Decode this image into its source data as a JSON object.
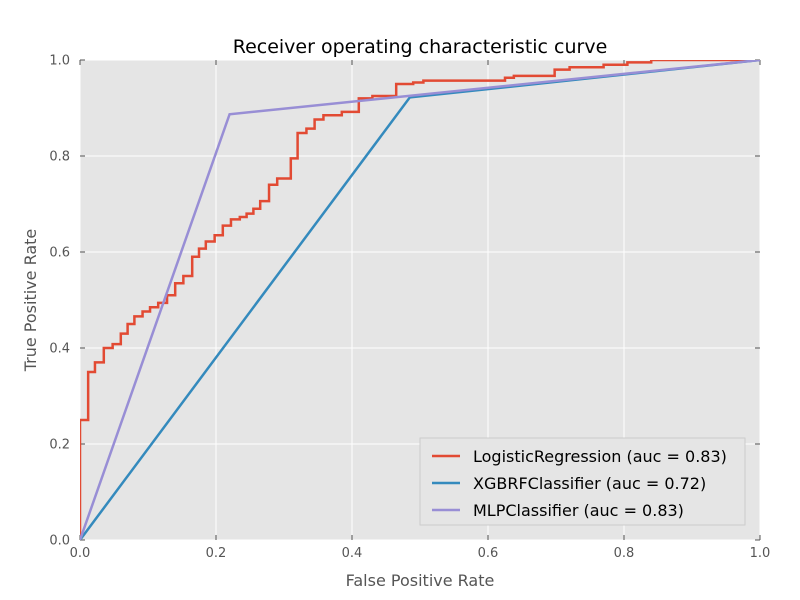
{
  "chart_data": {
    "type": "line",
    "title": "Receiver operating characteristic curve",
    "xlabel": "False Positive Rate",
    "ylabel": "True Positive Rate",
    "xlim": [
      0.0,
      1.0
    ],
    "ylim": [
      0.0,
      1.0
    ],
    "xticks": [
      "0.0",
      "0.2",
      "0.4",
      "0.6",
      "0.8",
      "1.0"
    ],
    "yticks": [
      "0.0",
      "0.2",
      "0.4",
      "0.6",
      "0.8",
      "1.0"
    ],
    "grid": true,
    "legend_position": "lower-right",
    "series": [
      {
        "name": "LogisticRegression (auc = 0.83)",
        "color": "#e24a33",
        "step": true,
        "points": [
          [
            0.0,
            0.0
          ],
          [
            0.0,
            0.25
          ],
          [
            0.012,
            0.25
          ],
          [
            0.012,
            0.35
          ],
          [
            0.022,
            0.35
          ],
          [
            0.022,
            0.37
          ],
          [
            0.035,
            0.37
          ],
          [
            0.035,
            0.4
          ],
          [
            0.048,
            0.4
          ],
          [
            0.048,
            0.408
          ],
          [
            0.06,
            0.408
          ],
          [
            0.06,
            0.43
          ],
          [
            0.07,
            0.43
          ],
          [
            0.07,
            0.45
          ],
          [
            0.08,
            0.45
          ],
          [
            0.08,
            0.466
          ],
          [
            0.092,
            0.466
          ],
          [
            0.092,
            0.476
          ],
          [
            0.103,
            0.476
          ],
          [
            0.103,
            0.485
          ],
          [
            0.115,
            0.485
          ],
          [
            0.115,
            0.494
          ],
          [
            0.128,
            0.494
          ],
          [
            0.128,
            0.51
          ],
          [
            0.14,
            0.51
          ],
          [
            0.14,
            0.535
          ],
          [
            0.152,
            0.535
          ],
          [
            0.152,
            0.55
          ],
          [
            0.165,
            0.55
          ],
          [
            0.165,
            0.59
          ],
          [
            0.175,
            0.59
          ],
          [
            0.175,
            0.607
          ],
          [
            0.185,
            0.607
          ],
          [
            0.185,
            0.622
          ],
          [
            0.198,
            0.622
          ],
          [
            0.198,
            0.635
          ],
          [
            0.21,
            0.635
          ],
          [
            0.21,
            0.655
          ],
          [
            0.222,
            0.655
          ],
          [
            0.222,
            0.668
          ],
          [
            0.235,
            0.668
          ],
          [
            0.235,
            0.673
          ],
          [
            0.245,
            0.673
          ],
          [
            0.245,
            0.68
          ],
          [
            0.255,
            0.68
          ],
          [
            0.255,
            0.69
          ],
          [
            0.265,
            0.69
          ],
          [
            0.265,
            0.706
          ],
          [
            0.278,
            0.706
          ],
          [
            0.278,
            0.74
          ],
          [
            0.29,
            0.74
          ],
          [
            0.29,
            0.753
          ],
          [
            0.31,
            0.753
          ],
          [
            0.31,
            0.795
          ],
          [
            0.32,
            0.795
          ],
          [
            0.32,
            0.848
          ],
          [
            0.333,
            0.848
          ],
          [
            0.333,
            0.857
          ],
          [
            0.345,
            0.857
          ],
          [
            0.345,
            0.876
          ],
          [
            0.358,
            0.876
          ],
          [
            0.358,
            0.885
          ],
          [
            0.385,
            0.885
          ],
          [
            0.385,
            0.892
          ],
          [
            0.41,
            0.892
          ],
          [
            0.41,
            0.92
          ],
          [
            0.43,
            0.92
          ],
          [
            0.43,
            0.925
          ],
          [
            0.465,
            0.925
          ],
          [
            0.465,
            0.95
          ],
          [
            0.49,
            0.95
          ],
          [
            0.49,
            0.953
          ],
          [
            0.505,
            0.953
          ],
          [
            0.505,
            0.957
          ],
          [
            0.625,
            0.957
          ],
          [
            0.625,
            0.963
          ],
          [
            0.638,
            0.963
          ],
          [
            0.638,
            0.967
          ],
          [
            0.698,
            0.967
          ],
          [
            0.698,
            0.98
          ],
          [
            0.72,
            0.98
          ],
          [
            0.72,
            0.985
          ],
          [
            0.77,
            0.985
          ],
          [
            0.77,
            0.99
          ],
          [
            0.805,
            0.99
          ],
          [
            0.805,
            0.995
          ],
          [
            0.84,
            0.995
          ],
          [
            0.84,
            1.0
          ],
          [
            1.0,
            1.0
          ]
        ]
      },
      {
        "name": "XGBRFClassifier (auc = 0.72)",
        "color": "#348abd",
        "step": false,
        "points": [
          [
            0.0,
            0.0
          ],
          [
            0.485,
            0.922
          ],
          [
            1.0,
            1.0
          ]
        ]
      },
      {
        "name": "MLPClassifier (auc = 0.83)",
        "color": "#988ed5",
        "step": false,
        "points": [
          [
            0.0,
            0.0
          ],
          [
            0.22,
            0.887
          ],
          [
            1.0,
            1.0
          ]
        ]
      }
    ]
  }
}
